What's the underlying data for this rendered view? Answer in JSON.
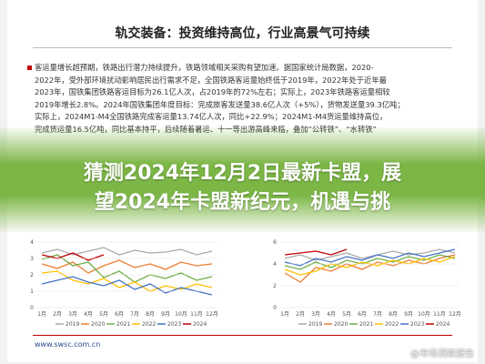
{
  "header": {
    "title": "轨交装备：投资维持高位，行业高景气可持续"
  },
  "body": {
    "lines": [
      "客运量增长超预期，铁路出行潜力持续提升，铁路领域相关采购有望加速。据国家统计局数据，2020-",
      "2022年，受外部环境扰动影响居民出行需求不足，全国铁路客运量始终低于2019年，2022年处于近年最",
      "2023年，国铁集团铁路客运目标为26.1亿人次，占2019年的72%左右；实际上，2023年铁路客运量相较",
      "2019年增长2.8%。2024年国铁集团年度目标：完成旅客发送量38.6亿人次（+5%），货物发送量39.3亿吨；",
      "实际上，2024M1-M4全国铁路完成客运量13.74亿人次，同比+22.9%；2024M1-M4货运量维持高位，",
      "完成货运量16.5亿吨，同比基本持平，后续随着暑运、十一等出游高峰来临，叠加“公转铁”、“水转铁”"
    ]
  },
  "overlay": {
    "lines": [
      "猜测2024年12月2日最新卡盟，展",
      "望2024年卡盟新纪元，机遇与挑"
    ]
  },
  "charts": [
    {
      "yticks": [
        "4",
        "3",
        "2",
        "1",
        "0"
      ],
      "months": [
        "1月",
        "2月",
        "3月",
        "4月",
        "5月",
        "6月",
        "7月",
        "8月",
        "9月",
        "10月",
        "11月",
        "12月"
      ],
      "legend": [
        "2019",
        "2020",
        "2021",
        "2022",
        "2023",
        "2024"
      ]
    },
    {
      "yticks": [
        "6",
        "4",
        "2",
        "0"
      ],
      "months": [
        "1月",
        "2月",
        "3月",
        "4月",
        "5月",
        "6月",
        "7月",
        "8月",
        "9月",
        "10月",
        "11月",
        "12月"
      ],
      "legend": [
        "2019",
        "2020",
        "2021",
        "2022",
        "2023",
        "2024"
      ]
    }
  ],
  "footer": {
    "url": "www.swsc.com.cn",
    "watermark": "@市场洞察报告"
  }
}
